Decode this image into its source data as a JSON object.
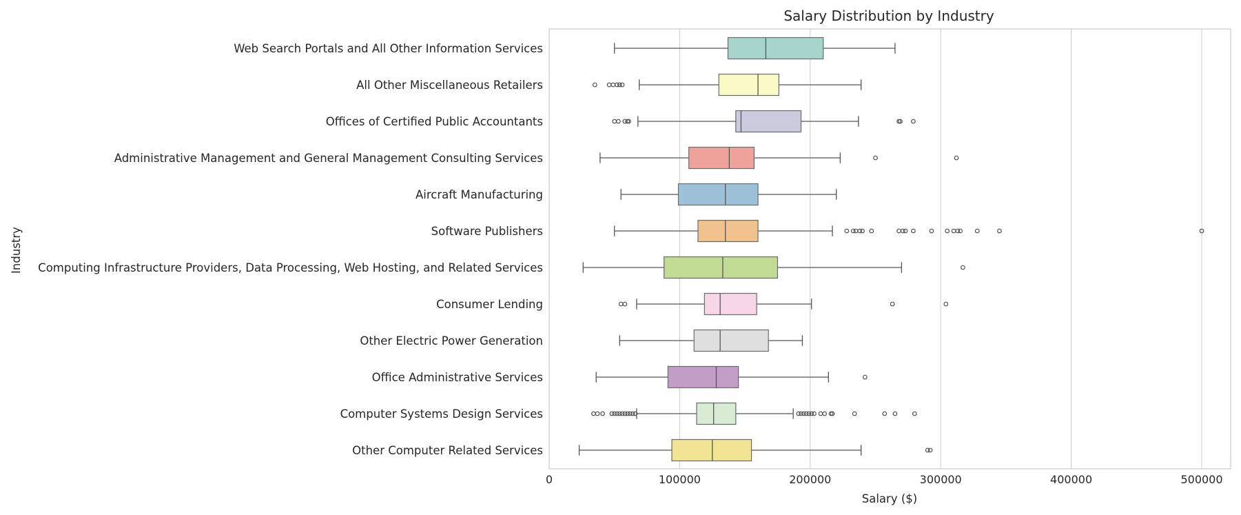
{
  "chart_data": {
    "type": "box",
    "title": "Salary Distribution by Industry",
    "xlabel": "Salary ($)",
    "ylabel": "Industry",
    "xlim": [
      0,
      525000
    ],
    "xticks": [
      0,
      100000,
      200000,
      300000,
      400000,
      500000
    ],
    "xtick_labels": [
      "0",
      "100000",
      "200000",
      "300000",
      "400000",
      "500000"
    ],
    "grid": "vertical",
    "categories": [
      {
        "name": "Web Search Portals and All Other Information Services",
        "whislo": 50000,
        "q1": 137000,
        "med": 166000,
        "q3": 210000,
        "whishi": 265000,
        "fliers": [],
        "color": "#a7d5cb"
      },
      {
        "name": "All Other Miscellaneous Retailers",
        "whislo": 69000,
        "q1": 130000,
        "med": 160000,
        "q3": 176000,
        "whishi": 239000,
        "fliers": [
          35000,
          46000,
          49000,
          52000,
          54000,
          56000
        ],
        "color": "#f9f9c5"
      },
      {
        "name": "Offices of Certified Public Accountants",
        "whislo": 68000,
        "q1": 143000,
        "med": 147000,
        "q3": 193000,
        "whishi": 237000,
        "fliers": [
          50000,
          53000,
          58000,
          60000,
          61000,
          268000,
          269000,
          279000
        ],
        "color": "#cbcbe0"
      },
      {
        "name": "Administrative Management and General Management Consulting Services",
        "whislo": 39000,
        "q1": 107000,
        "med": 138000,
        "q3": 157000,
        "whishi": 223000,
        "fliers": [
          250000,
          312000
        ],
        "color": "#f0a29c"
      },
      {
        "name": "Aircraft Manufacturing",
        "whislo": 55000,
        "q1": 99000,
        "med": 135000,
        "q3": 160000,
        "whishi": 220000,
        "fliers": [],
        "color": "#9ec1da"
      },
      {
        "name": "Software Publishers",
        "whislo": 50000,
        "q1": 114000,
        "med": 135000,
        "q3": 160000,
        "whishi": 217000,
        "fliers": [
          228000,
          233000,
          235000,
          238000,
          240000,
          247000,
          268000,
          271000,
          273000,
          279000,
          293000,
          305000,
          310000,
          313000,
          315000,
          328000,
          345000,
          500000
        ],
        "color": "#f0c28e"
      },
      {
        "name": "Computing Infrastructure Providers, Data Processing, Web Hosting, and Related Services",
        "whislo": 26000,
        "q1": 88000,
        "med": 133000,
        "q3": 175000,
        "whishi": 270000,
        "fliers": [
          317000
        ],
        "color": "#bfdc92"
      },
      {
        "name": "Consumer Lending",
        "whislo": 67000,
        "q1": 119000,
        "med": 131000,
        "q3": 159000,
        "whishi": 201000,
        "fliers": [
          55000,
          58000,
          263000,
          304000
        ],
        "color": "#f6d6e7"
      },
      {
        "name": "Other Electric Power Generation",
        "whislo": 54000,
        "q1": 111000,
        "med": 131000,
        "q3": 168000,
        "whishi": 194000,
        "fliers": [],
        "color": "#dfdfdf"
      },
      {
        "name": "Office Administrative Services",
        "whislo": 36000,
        "q1": 91000,
        "med": 128000,
        "q3": 145000,
        "whishi": 214000,
        "fliers": [
          242000
        ],
        "color": "#c29dc6"
      },
      {
        "name": "Computer Systems Design Services",
        "whislo": 67000,
        "q1": 113000,
        "med": 126000,
        "q3": 143000,
        "whishi": 187000,
        "fliers": [
          34000,
          37000,
          41000,
          48000,
          50000,
          52000,
          54000,
          56000,
          58000,
          60000,
          62000,
          64000,
          66000,
          191000,
          193000,
          195000,
          197000,
          199000,
          201000,
          203000,
          208000,
          211000,
          216000,
          217000,
          234000,
          257000,
          265000,
          280000
        ],
        "color": "#d8ebd3"
      },
      {
        "name": "Other Computer Related Services",
        "whislo": 23000,
        "q1": 94000,
        "med": 125000,
        "q3": 155000,
        "whishi": 239000,
        "fliers": [
          290000,
          292000
        ],
        "color": "#f0e492"
      }
    ]
  }
}
